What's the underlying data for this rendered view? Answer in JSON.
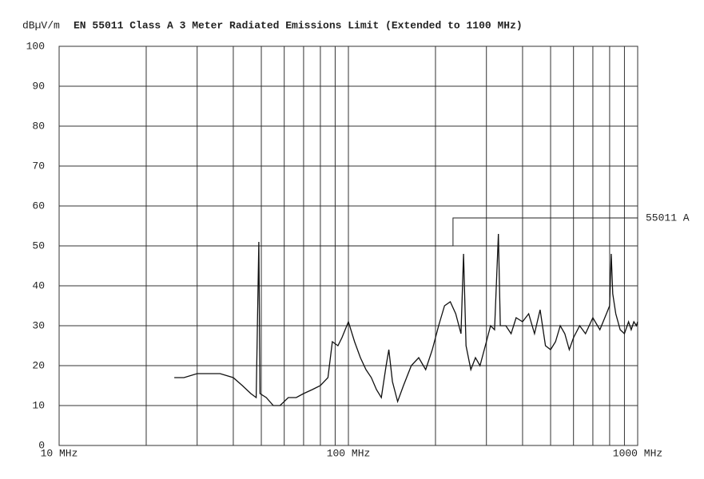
{
  "chart_data": {
    "type": "line",
    "title": "EN 55011 Class A  3 Meter Radiated Emissions Limit (Extended to 1100 MHz)",
    "y_label": "dBµV/m",
    "xscale": "log",
    "xlim": [
      10,
      1000
    ],
    "ylim": [
      0,
      100
    ],
    "xticks": [
      {
        "value": 10,
        "label": "10 MHz"
      },
      {
        "value": 100,
        "label": "100 MHz"
      },
      {
        "value": 1000,
        "label": "1000 MHz"
      }
    ],
    "xgrid": [
      20,
      30,
      40,
      50,
      60,
      70,
      80,
      90,
      200,
      300,
      400,
      500,
      600,
      700,
      800,
      900
    ],
    "yticks": [
      0,
      10,
      20,
      30,
      40,
      50,
      60,
      70,
      80,
      90,
      100
    ],
    "grid": true,
    "series": [
      {
        "name": "55011 A",
        "color": "#222222",
        "x": [
          30,
          230,
          230,
          1000
        ],
        "values": [
          50,
          50,
          57,
          57
        ]
      },
      {
        "color": "#111111",
        "x": [
          25,
          27,
          30,
          33,
          36,
          40,
          43,
          46,
          48,
          49,
          49.5,
          52,
          55,
          58,
          62,
          66,
          70,
          75,
          80,
          85,
          88,
          92,
          95,
          100,
          105,
          110,
          115,
          120,
          125,
          130,
          135,
          138,
          142,
          148,
          155,
          165,
          175,
          185,
          195,
          205,
          215,
          225,
          235,
          245,
          250,
          255,
          265,
          275,
          285,
          300,
          310,
          320,
          330,
          335,
          350,
          365,
          380,
          400,
          420,
          440,
          460,
          480,
          500,
          520,
          540,
          560,
          580,
          600,
          630,
          660,
          700,
          740,
          780,
          800,
          810,
          820,
          840,
          870,
          900,
          930,
          950,
          970,
          990,
          1000
        ],
        "values": [
          17,
          17,
          18,
          18,
          18,
          17,
          15,
          13,
          12,
          51,
          13,
          12,
          10,
          10,
          12,
          12,
          13,
          14,
          15,
          17,
          26,
          25,
          27,
          31,
          26,
          22,
          19,
          17,
          14,
          12,
          20,
          24,
          16,
          11,
          15,
          20,
          22,
          19,
          24,
          30,
          35,
          36,
          33,
          28,
          48,
          25,
          19,
          22,
          20,
          26,
          30,
          29,
          53,
          30,
          30,
          28,
          32,
          31,
          33,
          28,
          34,
          25,
          24,
          26,
          30,
          28,
          24,
          27,
          30,
          28,
          32,
          29,
          33,
          35,
          48,
          38,
          33,
          29,
          28,
          31,
          29,
          31,
          30,
          31
        ]
      }
    ]
  }
}
